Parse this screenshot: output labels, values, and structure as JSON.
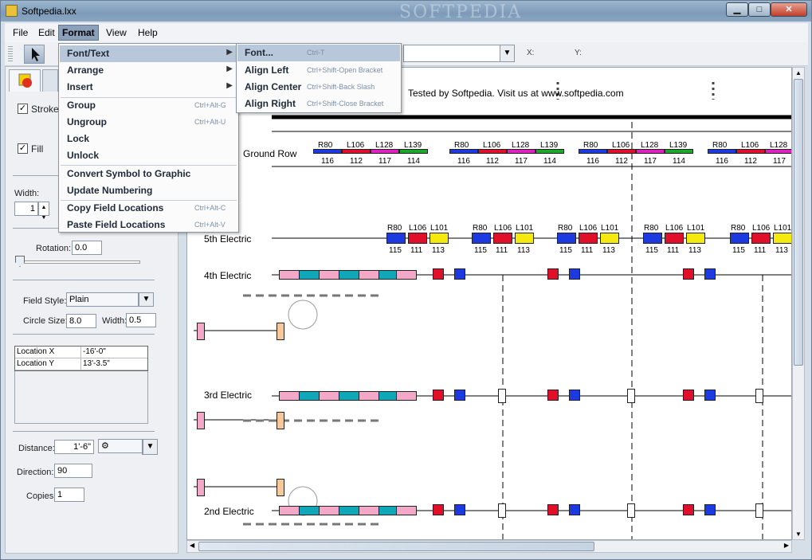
{
  "window": {
    "title": "Softpedia.lxx",
    "watermark": "SOFTPEDIA"
  },
  "menubar": [
    "File",
    "Edit",
    "Format",
    "View",
    "Help"
  ],
  "format_menu": {
    "items": [
      {
        "label": "Font/Text",
        "shortcut": "",
        "submenu": true
      },
      {
        "label": "Arrange",
        "shortcut": "",
        "submenu": true
      },
      {
        "label": "Insert",
        "shortcut": "",
        "submenu": true
      },
      {
        "label": "Group",
        "shortcut": "Ctrl+Alt-G"
      },
      {
        "label": "Ungroup",
        "shortcut": "Ctrl+Alt-U"
      },
      {
        "label": "Lock",
        "shortcut": ""
      },
      {
        "label": "Unlock",
        "shortcut": ""
      },
      {
        "label": "Convert Symbol to Graphic",
        "shortcut": ""
      },
      {
        "label": "Update Numbering",
        "shortcut": ""
      },
      {
        "label": "Copy Field Locations",
        "shortcut": "Ctrl+Alt-C"
      },
      {
        "label": "Paste Field Locations",
        "shortcut": "Ctrl+Alt-V"
      }
    ]
  },
  "font_submenu": {
    "items": [
      {
        "label": "Font...",
        "shortcut": "Ctrl-T"
      },
      {
        "label": "Align Left",
        "shortcut": "Ctrl+Shift-Open Bracket"
      },
      {
        "label": "Align Center",
        "shortcut": "Ctrl+Shift-Back Slash"
      },
      {
        "label": "Align Right",
        "shortcut": "Ctrl+Shift-Close Bracket"
      }
    ]
  },
  "toolbar": {
    "x_label": "X:",
    "y_label": "Y:"
  },
  "panel": {
    "stroke_label": "Stroke",
    "fill_label": "Fill",
    "width_label": "Width:",
    "width_value": "1",
    "rotation_label": "Rotation:",
    "rotation_value": "0.0",
    "field_style_label": "Field Style:",
    "field_style_value": "Plain",
    "circle_size_label": "Circle Size:",
    "circle_size_value": "8.0",
    "width2_label": "Width:",
    "width2_value": "0.5",
    "location_rows": [
      {
        "name": "Location X",
        "value": "-16'-0\""
      },
      {
        "name": "Location Y",
        "value": "13'-3.5\""
      }
    ],
    "distance_label": "Distance:",
    "distance_value": "1'-6\"",
    "direction_label": "Direction:",
    "direction_value": "90",
    "copies_label": "Copies:",
    "copies_value": "1"
  },
  "canvas": {
    "header_text": "Tested by Softpedia. Visit us at www.softpedia.com",
    "rows": {
      "ground": "Ground Row",
      "e5": "5th Electric",
      "e4": "4th Electric",
      "e3": "3rd Electric",
      "e2": "2nd Electric"
    },
    "ground_labels": [
      "R80",
      "L106",
      "L128",
      "L139"
    ],
    "ground_numbers": [
      "116",
      "112",
      "117",
      "114"
    ],
    "e5_labels": [
      "R80",
      "L106",
      "L101"
    ],
    "e5_numbers": [
      "115",
      "111",
      "113"
    ],
    "colors": {
      "red": "#e0102a",
      "blue": "#1c3ae0",
      "yellow": "#f5ea10",
      "green": "#1ca82a",
      "magenta": "#e020c0",
      "pink": "#f4a8c8",
      "teal": "#10a8b8",
      "peach": "#f7c89a"
    }
  }
}
